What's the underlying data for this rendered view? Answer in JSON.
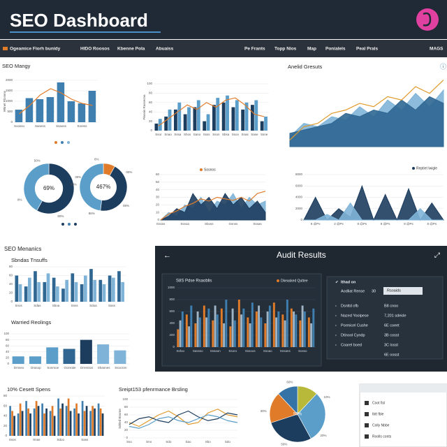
{
  "header": {
    "title": "SEO Dashboard"
  },
  "nav": {
    "items": [
      "Ogeamice Fiorh bunidy",
      "HIDO Roosos",
      "Kbenne Pola",
      "Abuaiss",
      "Pe Frants",
      "Topp Nios",
      "Map",
      "Ponialels",
      "Peal Prals",
      "MAGS"
    ]
  },
  "sections": {
    "metrics": "SEO Menanics"
  },
  "audit": {
    "title": "Audit Results",
    "header": "Ithad on",
    "filter_label": "Aodliat Rense",
    "filter_value": "30",
    "filter_button": "Rsoaids",
    "rows": [
      [
        "Dsnttd ofb",
        "B8 cnoo"
      ],
      [
        "Nazed Yoolpese",
        "7,201 sdeide"
      ],
      [
        "Pormicel Cushe",
        "6E coeet"
      ],
      [
        "Dtinool Cyndp",
        "3B cosst"
      ],
      [
        "Coarel boed",
        "3C losst"
      ]
    ],
    "footer": "6E oosst"
  },
  "card": {
    "items": [
      "Coot fisl",
      "Ibtt fble",
      "Colly Nbbe",
      "Roolls conts"
    ]
  },
  "chart_data": [
    {
      "type": "bar",
      "title": "SEO Mangy",
      "y_label": "Wtinet Rloseno",
      "categories": [
        "Soosso",
        null,
        "Saness",
        null,
        "Ssaoss",
        null,
        "Soress",
        null
      ],
      "ylim": [
        0,
        2000
      ],
      "yticks": [
        0,
        500,
        1000,
        1500,
        2000
      ],
      "series": [
        {
          "color": "#3f7fb0",
          "values": [
            600,
            1150,
            1100,
            1200,
            1900,
            1000,
            900,
            1500
          ]
        },
        {
          "type": "line",
          "color": "#e07b2a",
          "values": [
            400,
            800,
            1300,
            1600,
            1400,
            1100,
            900,
            800
          ]
        }
      ]
    },
    {
      "type": "bar",
      "y_label": "Pinonis Rassecna",
      "categories": [
        "Ssor",
        "Snao",
        "Sssa",
        "Shos",
        "Sano",
        "Ssss",
        "Sson",
        "Sbsa",
        "Ssoo",
        "Snas",
        "Sase",
        "Ssne"
      ],
      "ylim": [
        0,
        100
      ],
      "yticks": [
        0,
        20,
        40,
        60,
        80,
        100
      ],
      "series": [
        {
          "color": "#1d3d5e",
          "values": [
            15,
            30,
            45,
            35,
            50,
            20,
            55,
            60,
            50,
            45,
            55,
            20
          ]
        },
        {
          "color": "#5b9ec9",
          "values": [
            25,
            45,
            60,
            50,
            65,
            35,
            70,
            75,
            65,
            60,
            65,
            30
          ]
        },
        {
          "type": "line",
          "color": "#e07b2a",
          "values": [
            10,
            25,
            40,
            55,
            45,
            60,
            50,
            65,
            70,
            55,
            35,
            30
          ]
        }
      ]
    },
    {
      "type": "area",
      "title": "Anelid Gresuts",
      "categories": [
        null,
        null,
        null,
        null,
        null,
        null,
        null,
        null,
        null,
        null,
        null,
        null
      ],
      "ylim": [
        0,
        110
      ],
      "series": [
        {
          "color": "#7fb4d8",
          "values": [
            15,
            35,
            30,
            45,
            40,
            60,
            45,
            70,
            55,
            80,
            60,
            85
          ]
        },
        {
          "color": "#2f6792",
          "values": [
            20,
            25,
            30,
            35,
            50,
            45,
            55,
            50,
            70,
            55,
            75,
            65
          ]
        },
        {
          "type": "line",
          "color": "#e09a2a",
          "values": [
            10,
            30,
            35,
            50,
            55,
            65,
            60,
            75,
            70,
            90,
            80,
            100
          ]
        }
      ]
    },
    {
      "type": "pie",
      "donut": true,
      "center_label": "69%",
      "values": [
        58,
        42
      ],
      "colors": [
        "#1d3d5e",
        "#5b9ec9"
      ],
      "annotations": [
        "30%",
        "80%",
        "8%",
        "50%"
      ]
    },
    {
      "type": "pie",
      "donut": true,
      "center_label": "467%",
      "values": [
        8,
        44,
        48
      ],
      "colors": [
        "#e07b2a",
        "#1d3d5e",
        "#5b9ec9"
      ],
      "annotations": [
        "00%",
        "08%",
        "86%",
        "30%",
        "6%"
      ]
    },
    {
      "type": "area",
      "categories": [
        "Gssss",
        null,
        null,
        "Sssoa",
        null,
        null,
        "Sboss",
        null,
        null,
        "Gsnss",
        null,
        null,
        "Sssas",
        null
      ],
      "ylim": [
        0,
        60
      ],
      "yticks": [
        0,
        10,
        20,
        30,
        40,
        50,
        60
      ],
      "series": [
        {
          "color": "#7fb4d8",
          "values": [
            0,
            10,
            5,
            20,
            15,
            30,
            10,
            25,
            20,
            35,
            15,
            30,
            20,
            25
          ]
        },
        {
          "color": "#1d3d5e",
          "values": [
            0,
            5,
            15,
            10,
            35,
            20,
            30,
            15,
            35,
            20,
            30,
            15,
            25,
            10
          ]
        },
        {
          "type": "line",
          "name": "Sosnos",
          "color": "#e07b2a",
          "values": [
            0,
            8,
            12,
            18,
            22,
            28,
            25,
            30,
            28,
            26,
            30,
            25,
            35,
            38
          ]
        }
      ]
    },
    {
      "type": "area",
      "categories": [
        null,
        "8 @Ps",
        null,
        "2 @Ps",
        null,
        "8 @Ps",
        null,
        "8 @Ps",
        null,
        "8 @Ps",
        null,
        "8 @Ps",
        null
      ],
      "ylim": [
        0,
        8000
      ],
      "yticks": [
        0,
        2000,
        4000,
        6000,
        8000
      ],
      "series": [
        {
          "name": "Reptiet Iwigle",
          "color": "#1d3d5e",
          "values": [
            0,
            4000,
            0,
            2000,
            500,
            6000,
            0,
            4500,
            0,
            5500,
            0,
            3000,
            0
          ]
        },
        {
          "color": "#7fb4d8",
          "values": [
            0,
            0,
            1000,
            0,
            3000,
            0,
            0,
            0,
            0,
            0,
            2000,
            0,
            0
          ]
        }
      ]
    },
    {
      "type": "bar",
      "title": "Sbndas Tnsuffs",
      "categories": [
        "Snos",
        null,
        "Sdas",
        null,
        "Sboa",
        null,
        "Snss",
        null,
        "Sdoa",
        null,
        "Sass",
        null
      ],
      "ylim": [
        0,
        80
      ],
      "yticks": [
        0,
        20,
        40,
        60,
        80
      ],
      "series": [
        {
          "color": "#2f6792",
          "values": [
            60,
            35,
            70,
            45,
            55,
            30,
            65,
            40,
            75,
            50,
            60,
            70
          ]
        },
        {
          "color": "#7fb4d8",
          "values": [
            40,
            55,
            45,
            65,
            35,
            50,
            45,
            60,
            50,
            40,
            55,
            45
          ]
        }
      ]
    },
    {
      "type": "bar",
      "title": "Warried Reolings",
      "categories": [
        "Drnseo",
        "Drasop",
        "Sonrsoe",
        "Ooinrale",
        "Drrentios",
        "Shannes",
        "Ssocsnn"
      ],
      "ylim": [
        0,
        100
      ],
      "yticks": [
        0,
        20,
        40,
        60,
        80,
        100
      ],
      "series": [
        {
          "colors": [
            "#5b9ec9",
            "#5b9ec9",
            "#5b9ec9",
            "#2f6792",
            "#1d3d5e",
            "#7fb4d8",
            "#7fb4d8"
          ],
          "values": [
            25,
            25,
            55,
            50,
            80,
            65,
            45
          ]
        }
      ]
    },
    {
      "type": "bar",
      "title": "S8S Pdse Rsaoblis",
      "categories": [
        "Ssfoo",
        null,
        "Sassso",
        null,
        "Sssaon",
        null,
        "Ssoro",
        null,
        "Sssoos",
        null,
        "Ssoao",
        null,
        "Snsans",
        null,
        "Sosso",
        null
      ],
      "ylim": [
        0,
        1000
      ],
      "yticks": [
        0,
        200,
        400,
        600,
        800,
        1000
      ],
      "series": [
        {
          "name": "Dkeasked Quttee",
          "color": "#e07b2a",
          "values": [
            300,
            550,
            400,
            700,
            450,
            650,
            350,
            800,
            500,
            600,
            400,
            750,
            550,
            650,
            450,
            500
          ]
        },
        {
          "color": "#9fb4c4",
          "values": [
            450,
            350,
            600,
            500,
            700,
            400,
            650,
            550,
            400,
            700,
            600,
            500,
            450,
            600,
            700,
            400
          ]
        },
        {
          "color": "#3f7fb0",
          "values": [
            600,
            700,
            500,
            650,
            550,
            800,
            450,
            650,
            750,
            500,
            700,
            600,
            800,
            550,
            600,
            650
          ]
        }
      ]
    },
    {
      "type": "bar",
      "title": "10% Cesett Spens",
      "y_label": "Bnoiel Rssess",
      "categories": [
        "Ssos",
        null,
        null,
        "Snas",
        null,
        null,
        "Sdoo",
        null,
        null,
        "Sass",
        null,
        null
      ],
      "ylim": [
        0,
        80
      ],
      "yticks": [
        0,
        20,
        40,
        60,
        80
      ],
      "series": [
        {
          "color": "#3f7fb0",
          "values": [
            60,
            45,
            70,
            55,
            65,
            50,
            75,
            60,
            55,
            70,
            50,
            65
          ]
        },
        {
          "color": "#e07b2a",
          "values": [
            50,
            65,
            55,
            70,
            45,
            60,
            55,
            75,
            65,
            50,
            60,
            55
          ]
        },
        {
          "color": "#1d3d5e",
          "values": [
            40,
            50,
            45,
            60,
            55,
            40,
            65,
            50,
            45,
            60,
            55,
            45
          ]
        }
      ]
    },
    {
      "type": "line",
      "title": "Sreipt153 pfenrmance Brsling",
      "y_label": "Sdrled Bnorne",
      "categories": [
        "Sso",
        null,
        "Sno",
        null,
        "Sdo",
        null,
        "Sao",
        null,
        "Sbo",
        null,
        "Sdo",
        null
      ],
      "ylim": [
        0,
        100
      ],
      "yticks": [
        0,
        20,
        40,
        60,
        80,
        100
      ],
      "series": [
        {
          "color": "#e09a2a",
          "values": [
            40,
            30,
            45,
            60,
            70,
            55,
            35,
            40,
            65,
            75,
            60,
            55
          ]
        },
        {
          "color": "#1d3d5e",
          "values": [
            35,
            50,
            55,
            45,
            40,
            60,
            70,
            55,
            45,
            50,
            65,
            60
          ]
        },
        {
          "color": "#5b9ec9",
          "values": [
            30,
            25,
            35,
            50,
            55,
            45,
            40,
            50,
            60,
            55,
            45,
            40
          ]
        }
      ]
    },
    {
      "type": "pie",
      "center_label": "50%",
      "values": [
        12,
        30,
        28,
        18,
        12
      ],
      "colors": [
        "#b8b83a",
        "#5b9ec9",
        "#1d3d5e",
        "#e07b2a",
        "#3572a5"
      ],
      "annotations": [
        "10%",
        "20%",
        "50%",
        "30%",
        "60%"
      ]
    }
  ]
}
